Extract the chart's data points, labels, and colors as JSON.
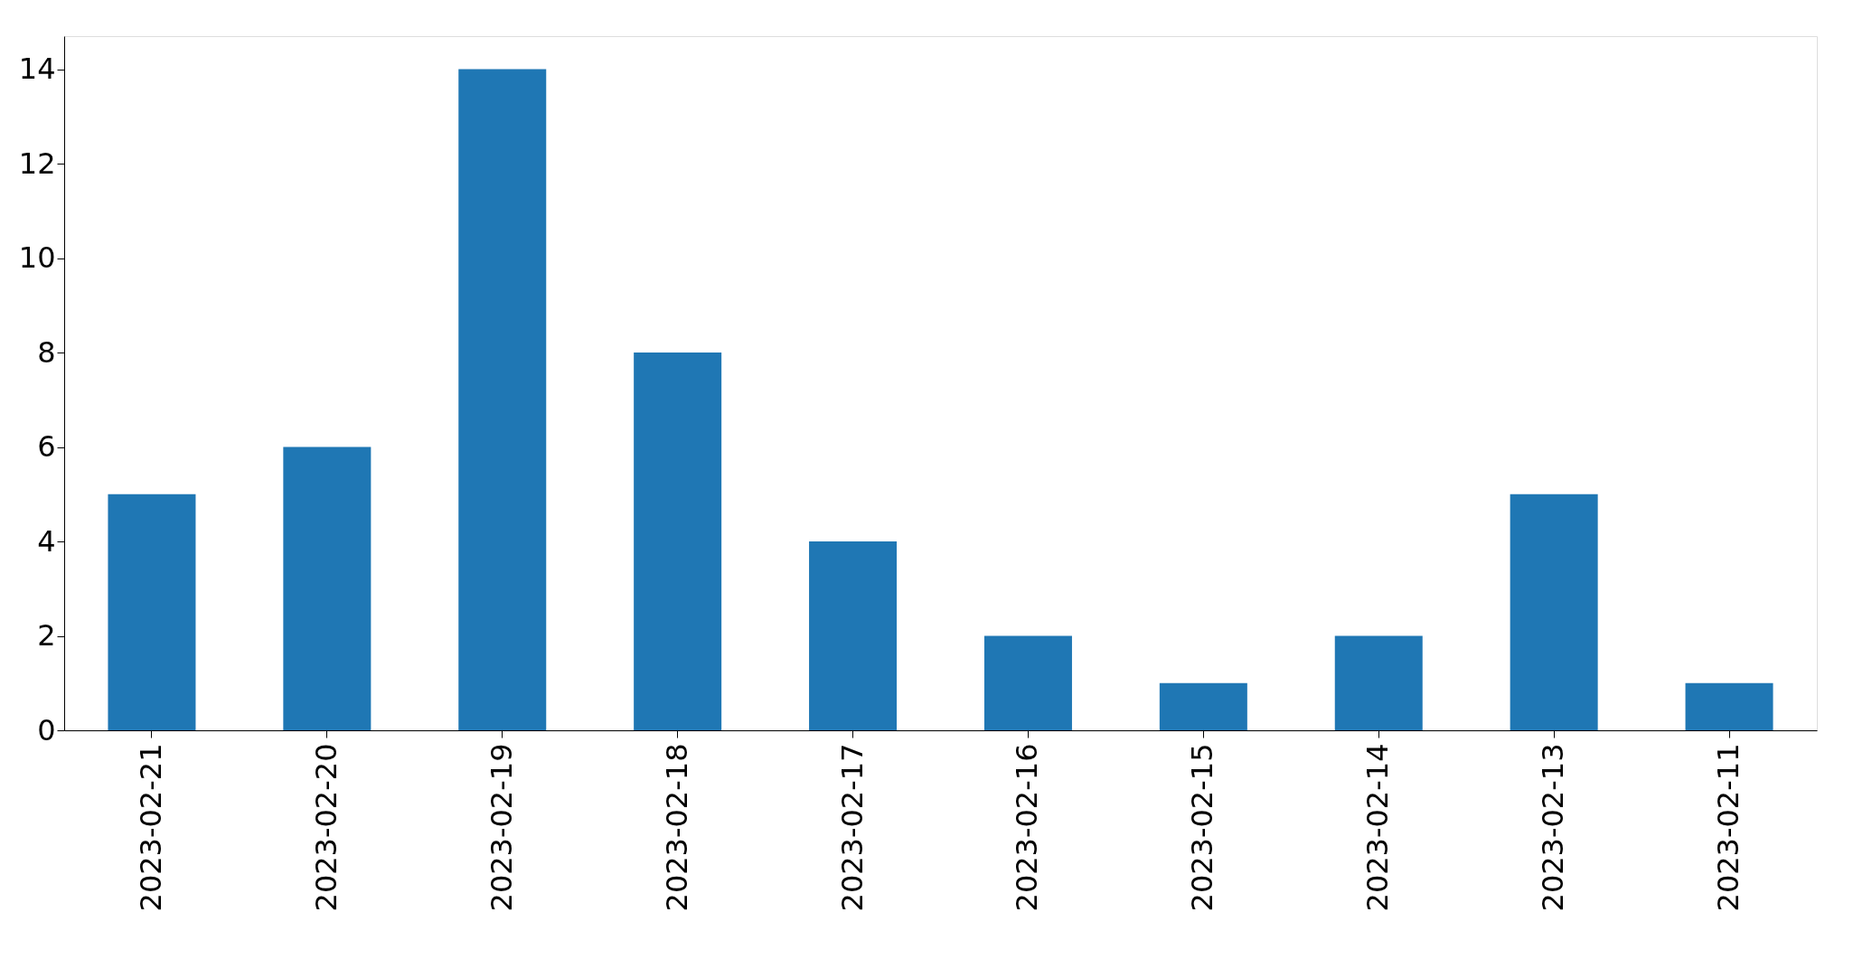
{
  "chart_data": {
    "type": "bar",
    "categories": [
      "2023-02-21",
      "2023-02-20",
      "2023-02-19",
      "2023-02-18",
      "2023-02-17",
      "2023-02-16",
      "2023-02-15",
      "2023-02-14",
      "2023-02-13",
      "2023-02-11"
    ],
    "values": [
      5,
      6,
      14,
      8,
      4,
      2,
      1,
      2,
      5,
      1
    ],
    "color": "#1f77b4",
    "ylim": [
      0,
      14.7
    ],
    "yticks": [
      0,
      2,
      4,
      6,
      8,
      10,
      12,
      14
    ],
    "grid": false
  }
}
